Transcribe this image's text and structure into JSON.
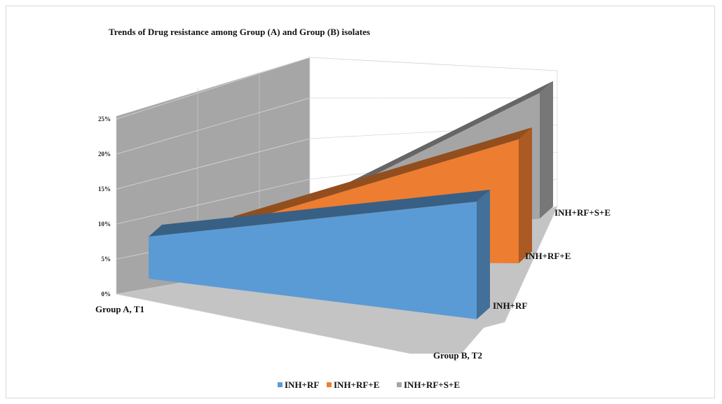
{
  "chart_data": {
    "type": "area",
    "style": "3d-area",
    "title": "Trends of Drug resistance among Group (A) and Group (B) isolates",
    "categories": [
      "Group A, T1",
      "Group B, T2"
    ],
    "yticks": [
      "0%",
      "5%",
      "10%",
      "15%",
      "20%",
      "25%"
    ],
    "ylim": [
      0,
      25
    ],
    "grid": true,
    "legend_position": "bottom",
    "series": [
      {
        "name": "INH+RF",
        "values": [
          5,
          14
        ],
        "color": "#5b9bd5"
      },
      {
        "name": "INH+RF+E",
        "values": [
          4,
          15
        ],
        "color": "#ed7d31"
      },
      {
        "name": "INH+RF+S+E",
        "values": [
          3,
          16
        ],
        "color": "#a5a5a5"
      }
    ]
  }
}
